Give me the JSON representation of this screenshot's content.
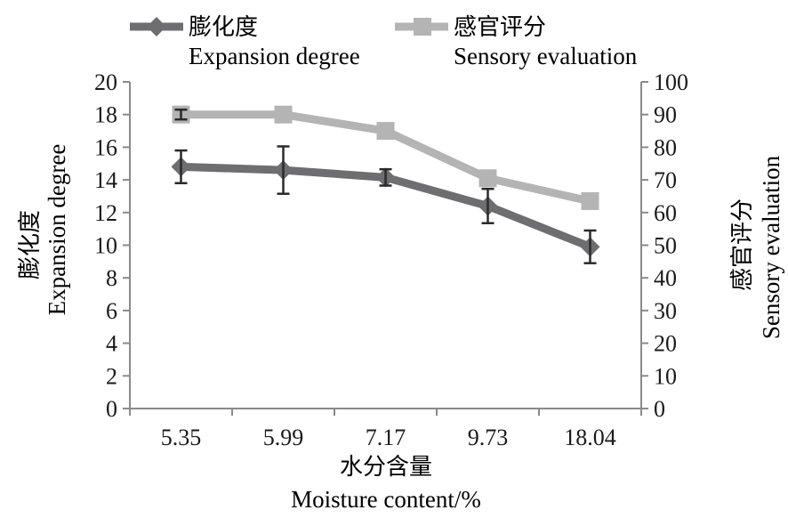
{
  "chart_data": {
    "type": "line",
    "categories": [
      "5.35",
      "5.99",
      "7.17",
      "9.73",
      "18.04"
    ],
    "xlabel_cn": "水分含量",
    "xlabel_en": "Moisture content/%",
    "ylabel_left_cn": "膨化度",
    "ylabel_left_en": "Expansion degree",
    "ylabel_right_cn": "感官评分",
    "ylabel_right_en": "Sensory evaluation",
    "ylim_left": [
      0,
      20
    ],
    "ylim_right": [
      0,
      100
    ],
    "yticks_left": [
      "0",
      "2",
      "4",
      "6",
      "8",
      "10",
      "12",
      "14",
      "16",
      "18",
      "20"
    ],
    "yticks_right": [
      "0",
      "10",
      "20",
      "30",
      "40",
      "50",
      "60",
      "70",
      "80",
      "90",
      "100"
    ],
    "grid": false,
    "legend_position": "top",
    "series": [
      {
        "name_cn": "膨化度",
        "name_en": "Expansion degree",
        "axis": "left",
        "color": "#6e6e70",
        "marker": "diamond",
        "values": [
          14.8,
          14.6,
          14.15,
          12.4,
          9.9
        ],
        "error": [
          1.0,
          1.45,
          0.5,
          1.05,
          1.0
        ]
      },
      {
        "name_cn": "感官评分",
        "name_en": "Sensory evaluation",
        "axis": "right",
        "color": "#b4b4b4",
        "marker": "square",
        "values": [
          90,
          90,
          85,
          70.5,
          63.5
        ],
        "error": [
          1.5,
          0,
          0,
          0,
          0
        ]
      }
    ]
  }
}
